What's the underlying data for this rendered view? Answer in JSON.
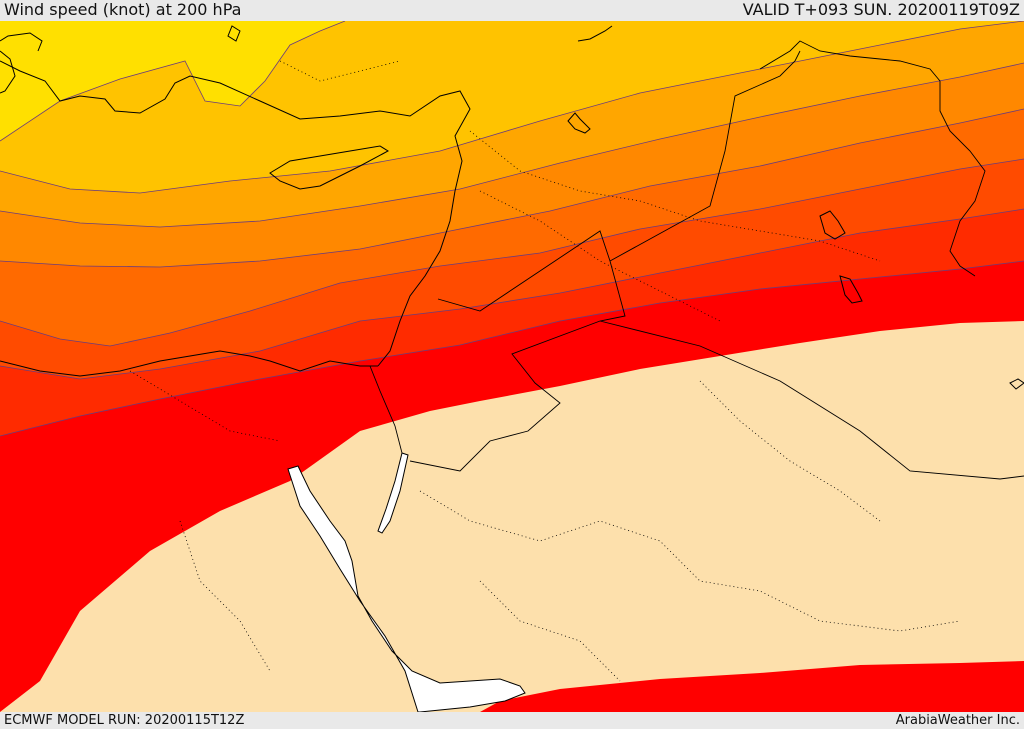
{
  "header": {
    "title": "Wind speed (knot) at 200 hPa",
    "valid": "VALID T+093 SUN. 20200119T09Z"
  },
  "footer": {
    "model_run": "ECMWF MODEL RUN: 20200115T12Z",
    "brand": "ArabiaWeather Inc."
  },
  "map": {
    "variable": "wind speed",
    "units": "knot",
    "level": "200 hPa",
    "region": "Eastern Mediterranean / Levant / Red Sea",
    "colors": {
      "band_1": "#ffe000",
      "band_2": "#ffc300",
      "band_3": "#ffa600",
      "band_4": "#ff8800",
      "band_5": "#ff6a00",
      "band_6": "#ff4b00",
      "band_7": "#ff2b00",
      "band_8": "#ff0000",
      "low_wind_land": "#fde0ac",
      "sea_mask": "#ffffff",
      "isotach_line": "#6b3c7c",
      "border_line": "#000000"
    }
  }
}
